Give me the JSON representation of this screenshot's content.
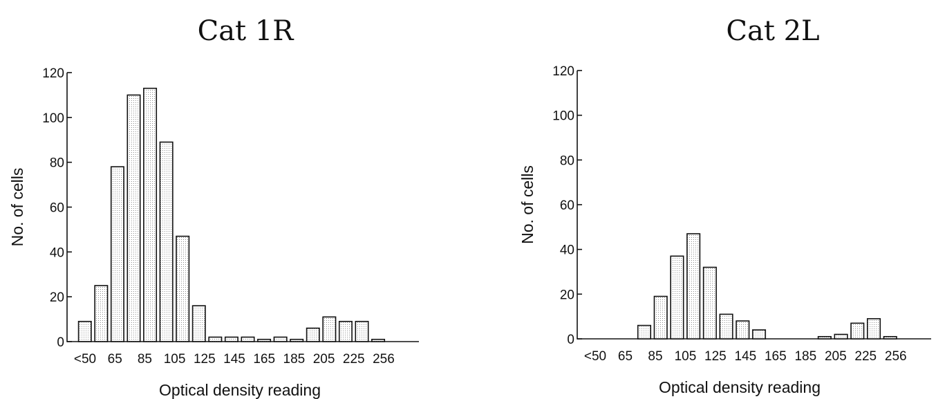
{
  "chart_data": [
    {
      "type": "bar",
      "title": "Cat 1R",
      "xlabel": "Optical density reading",
      "ylabel": "No. of cells",
      "ylim": [
        0,
        120
      ],
      "yticks": [
        "0",
        "20",
        "40",
        "60",
        "80",
        "100",
        "120"
      ],
      "xtick_labels": [
        "<50",
        "65",
        "85",
        "105",
        "125",
        "145",
        "165",
        "185",
        "205",
        "225",
        "256"
      ],
      "values": [
        9,
        25,
        78,
        110,
        113,
        89,
        47,
        16,
        2,
        2,
        2,
        1,
        2,
        1,
        6,
        11,
        9,
        9,
        1,
        0,
        0
      ]
    },
    {
      "type": "bar",
      "title": "Cat 2L",
      "xlabel": "Optical density reading",
      "ylabel": "No. of cells",
      "ylim": [
        0,
        120
      ],
      "yticks": [
        "0",
        "20",
        "40",
        "60",
        "80",
        "100",
        "120"
      ],
      "xtick_labels": [
        "<50",
        "65",
        "85",
        "105",
        "125",
        "145",
        "165",
        "185",
        "205",
        "225",
        "256"
      ],
      "values": [
        0,
        0,
        0,
        6,
        19,
        37,
        47,
        32,
        11,
        8,
        4,
        0,
        0,
        0,
        1,
        2,
        7,
        9,
        1,
        0,
        0
      ]
    }
  ]
}
